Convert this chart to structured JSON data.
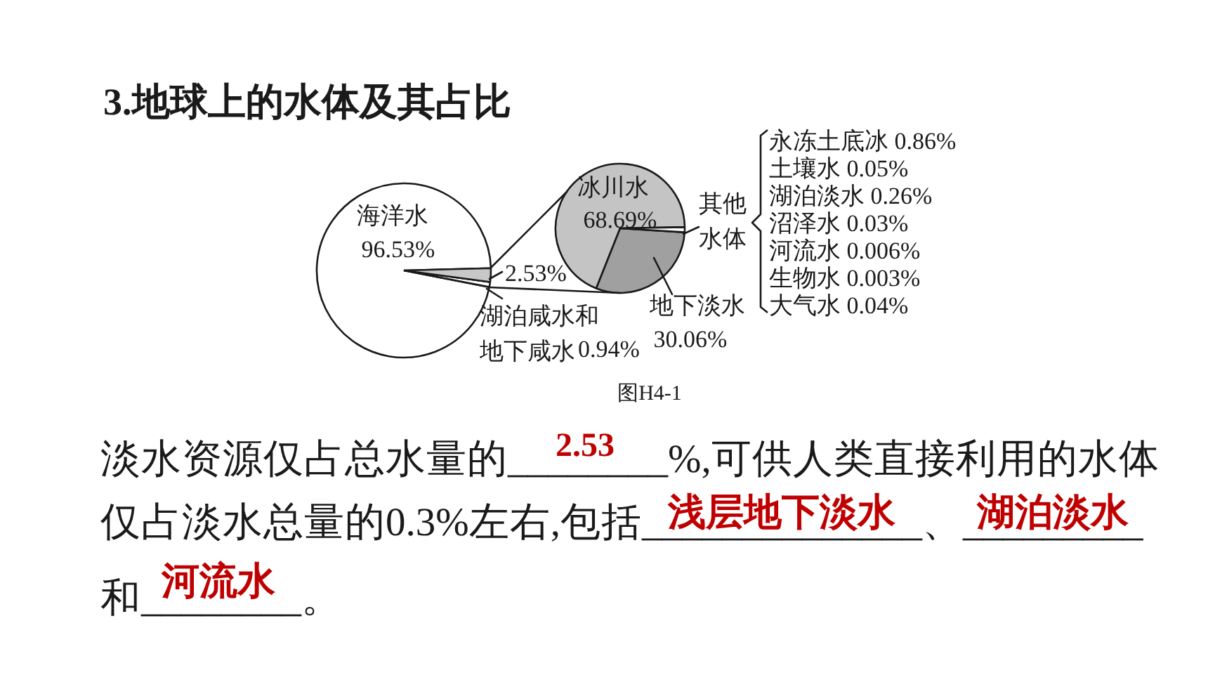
{
  "chart_data": [
    {
      "type": "pie",
      "title": "3.地球上的水体及其占比",
      "categories": [
        "海洋水",
        "湖泊咸水和地下咸水",
        null
      ],
      "values": [
        96.53,
        0.94,
        2.53
      ],
      "colors": [
        "#ffffff",
        "#ffffff",
        "#c8c8c8"
      ],
      "value_labels": [
        "96.53%",
        "0.94%",
        "2.53%"
      ],
      "annotations": [
        "图H4-1",
        "淡水资源仅占总水量的________%,可供人类直接利用的水体",
        "仅占淡水总量的0.3%左右,包括______________、_________",
        "和________。",
        "2.53",
        "浅层地下淡水",
        "湖泊淡水",
        "河流水"
      ]
    },
    {
      "type": "pie",
      "categories": [
        "冰川水",
        "地下淡水",
        "其他水体"
      ],
      "values": [
        68.69,
        30.06,
        1.25
      ],
      "colors": [
        "#c4c4c4",
        "#a0a0a0",
        "#ffffff"
      ],
      "value_labels": [
        "68.69%",
        "30.06%",
        null
      ],
      "annotations": [
        "永冻土底冰 0.86%",
        "土壤水 0.05%",
        "湖泊淡水 0.26%",
        "沼泽水 0.03%",
        "河流水 0.006%",
        "生物水 0.003%",
        "大气水 0.04%"
      ]
    }
  ]
}
